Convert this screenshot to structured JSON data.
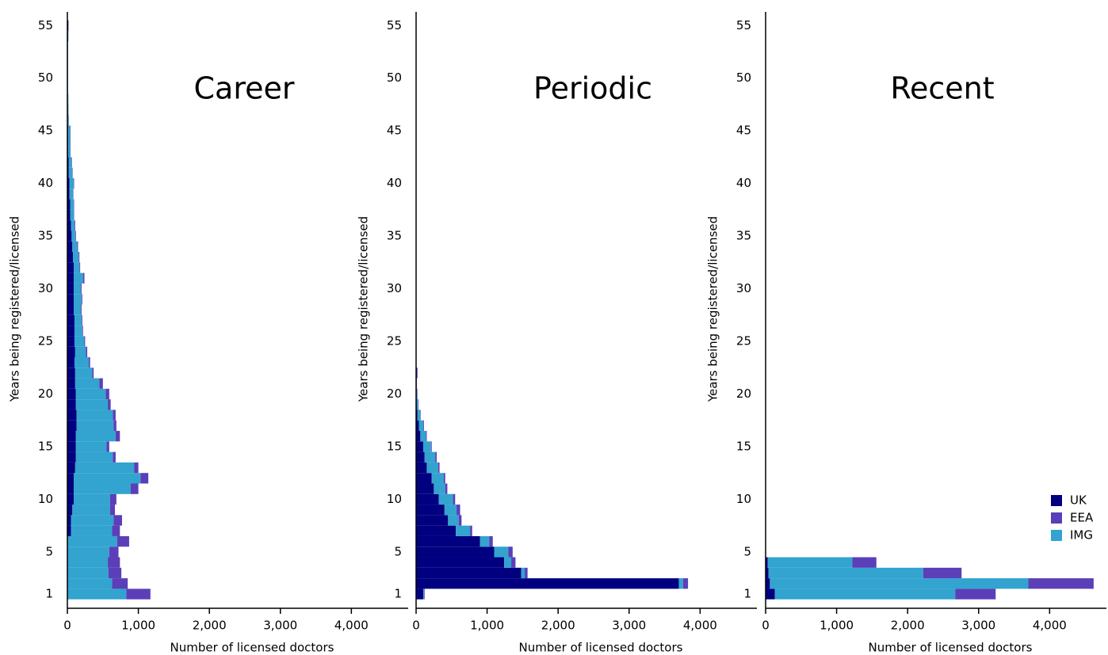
{
  "chart_data": [
    {
      "type": "bar",
      "orientation": "horizontal",
      "stacked": true,
      "title": "Career",
      "xlabel": "Number of licensed doctors",
      "ylabel": "Years being registered/licensed",
      "categories": [
        1,
        2,
        3,
        4,
        5,
        6,
        7,
        8,
        9,
        10,
        11,
        12,
        13,
        14,
        15,
        16,
        17,
        18,
        19,
        20,
        21,
        22,
        23,
        24,
        25,
        26,
        27,
        28,
        29,
        30,
        31,
        32,
        33,
        34,
        35,
        36,
        37,
        38,
        39,
        40,
        41,
        42,
        43,
        44,
        45,
        46,
        47,
        48,
        49,
        50,
        51,
        52,
        53,
        54,
        55
      ],
      "series": [
        {
          "name": "UK",
          "color": "#000080",
          "values": [
            0,
            0,
            0,
            0,
            0,
            0,
            50,
            50,
            70,
            90,
            90,
            90,
            110,
            120,
            120,
            120,
            130,
            130,
            120,
            120,
            110,
            110,
            100,
            110,
            100,
            100,
            100,
            90,
            90,
            90,
            90,
            90,
            80,
            70,
            60,
            50,
            40,
            40,
            30,
            30,
            20,
            20,
            10,
            10,
            10,
            5,
            5,
            5,
            5,
            5,
            5,
            5,
            5,
            10,
            15
          ]
        },
        {
          "name": "EEA",
          "color": "#5a3fb8",
          "values": [
            340,
            220,
            180,
            170,
            130,
            170,
            110,
            120,
            70,
            90,
            110,
            110,
            60,
            40,
            40,
            60,
            40,
            40,
            40,
            50,
            50,
            20,
            20,
            20,
            10,
            10,
            10,
            10,
            10,
            10,
            20,
            10,
            10,
            10,
            10,
            10,
            5,
            5,
            5,
            5,
            5,
            5,
            5,
            5,
            5,
            2,
            2,
            0,
            0,
            0,
            0,
            0,
            0,
            0,
            0
          ]
        },
        {
          "name": "IMG",
          "color": "#33a3cf",
          "values": [
            830,
            630,
            580,
            570,
            590,
            700,
            580,
            600,
            530,
            510,
            800,
            940,
            830,
            520,
            430,
            560,
            520,
            510,
            450,
            420,
            340,
            240,
            200,
            150,
            140,
            110,
            100,
            100,
            110,
            100,
            130,
            80,
            80,
            70,
            50,
            50,
            50,
            50,
            50,
            60,
            50,
            40,
            30,
            30,
            30,
            15,
            10,
            10,
            5,
            5,
            5,
            5,
            5,
            5,
            0
          ]
        }
      ],
      "xlim": [
        0,
        4800
      ],
      "xticks": [
        0,
        {
          "value": 1000,
          "label": "1,000"
        },
        {
          "value": 2000,
          "label": "2,000"
        },
        {
          "value": 3000,
          "label": "3,000"
        },
        {
          "value": 4000,
          "label": "4,000"
        }
      ],
      "ylim": [
        -0.35,
        56.3
      ],
      "yticks": [
        1,
        5,
        10,
        15,
        20,
        25,
        30,
        35,
        40,
        45,
        50,
        55
      ]
    },
    {
      "type": "bar",
      "orientation": "horizontal",
      "stacked": true,
      "title": "Periodic",
      "xlabel": "Number of licensed doctors",
      "ylabel": "Years being registered/licensed",
      "categories": [
        1,
        2,
        3,
        4,
        5,
        6,
        7,
        8,
        9,
        10,
        11,
        12,
        13,
        14,
        15,
        16,
        17,
        18,
        19,
        20,
        21,
        22
      ],
      "series": [
        {
          "name": "UK",
          "color": "#000080",
          "values": [
            100,
            3700,
            1480,
            1240,
            1100,
            900,
            560,
            450,
            400,
            320,
            250,
            220,
            150,
            120,
            100,
            60,
            40,
            20,
            10,
            5,
            0,
            0
          ]
        },
        {
          "name": "EEA",
          "color": "#5a3fb8",
          "values": [
            10,
            70,
            40,
            60,
            60,
            50,
            30,
            40,
            50,
            30,
            30,
            20,
            20,
            20,
            10,
            10,
            10,
            5,
            5,
            5,
            5,
            20
          ]
        },
        {
          "name": "IMG",
          "color": "#33a3cf",
          "values": [
            10,
            60,
            50,
            100,
            200,
            130,
            200,
            150,
            170,
            200,
            160,
            170,
            160,
            150,
            110,
            80,
            60,
            40,
            20,
            10,
            5,
            0
          ]
        }
      ],
      "xlim": [
        0,
        4800
      ],
      "xticks": [
        0,
        {
          "value": 1000,
          "label": "1,000"
        },
        {
          "value": 2000,
          "label": "2,000"
        },
        {
          "value": 3000,
          "label": "3,000"
        },
        {
          "value": 4000,
          "label": "4,000"
        }
      ],
      "ylim": [
        -0.35,
        56.3
      ],
      "yticks": [
        1,
        5,
        10,
        15,
        20,
        25,
        30,
        35,
        40,
        45,
        50,
        55
      ]
    },
    {
      "type": "bar",
      "orientation": "horizontal",
      "stacked": true,
      "title": "Recent",
      "xlabel": "Number of licensed doctors",
      "ylabel": "Years being registered/licensed",
      "categories": [
        1,
        2,
        3,
        4
      ],
      "series": [
        {
          "name": "UK",
          "color": "#000080",
          "values": [
            130,
            60,
            40,
            30
          ]
        },
        {
          "name": "EEA",
          "color": "#5a3fb8",
          "values": [
            570,
            920,
            540,
            340
          ]
        },
        {
          "name": "IMG",
          "color": "#33a3cf",
          "values": [
            2540,
            3640,
            2180,
            1190
          ]
        }
      ],
      "xlim": [
        0,
        4800
      ],
      "xticks": [
        0,
        {
          "value": 1000,
          "label": "1,000"
        },
        {
          "value": 2000,
          "label": "2,000"
        },
        {
          "value": 3000,
          "label": "3,000"
        },
        {
          "value": 4000,
          "label": "4,000"
        }
      ],
      "ylim": [
        -0.35,
        56.3
      ],
      "yticks": [
        1,
        5,
        10,
        15,
        20,
        25,
        30,
        35,
        40,
        45,
        50,
        55
      ],
      "legend": "lower right"
    }
  ]
}
